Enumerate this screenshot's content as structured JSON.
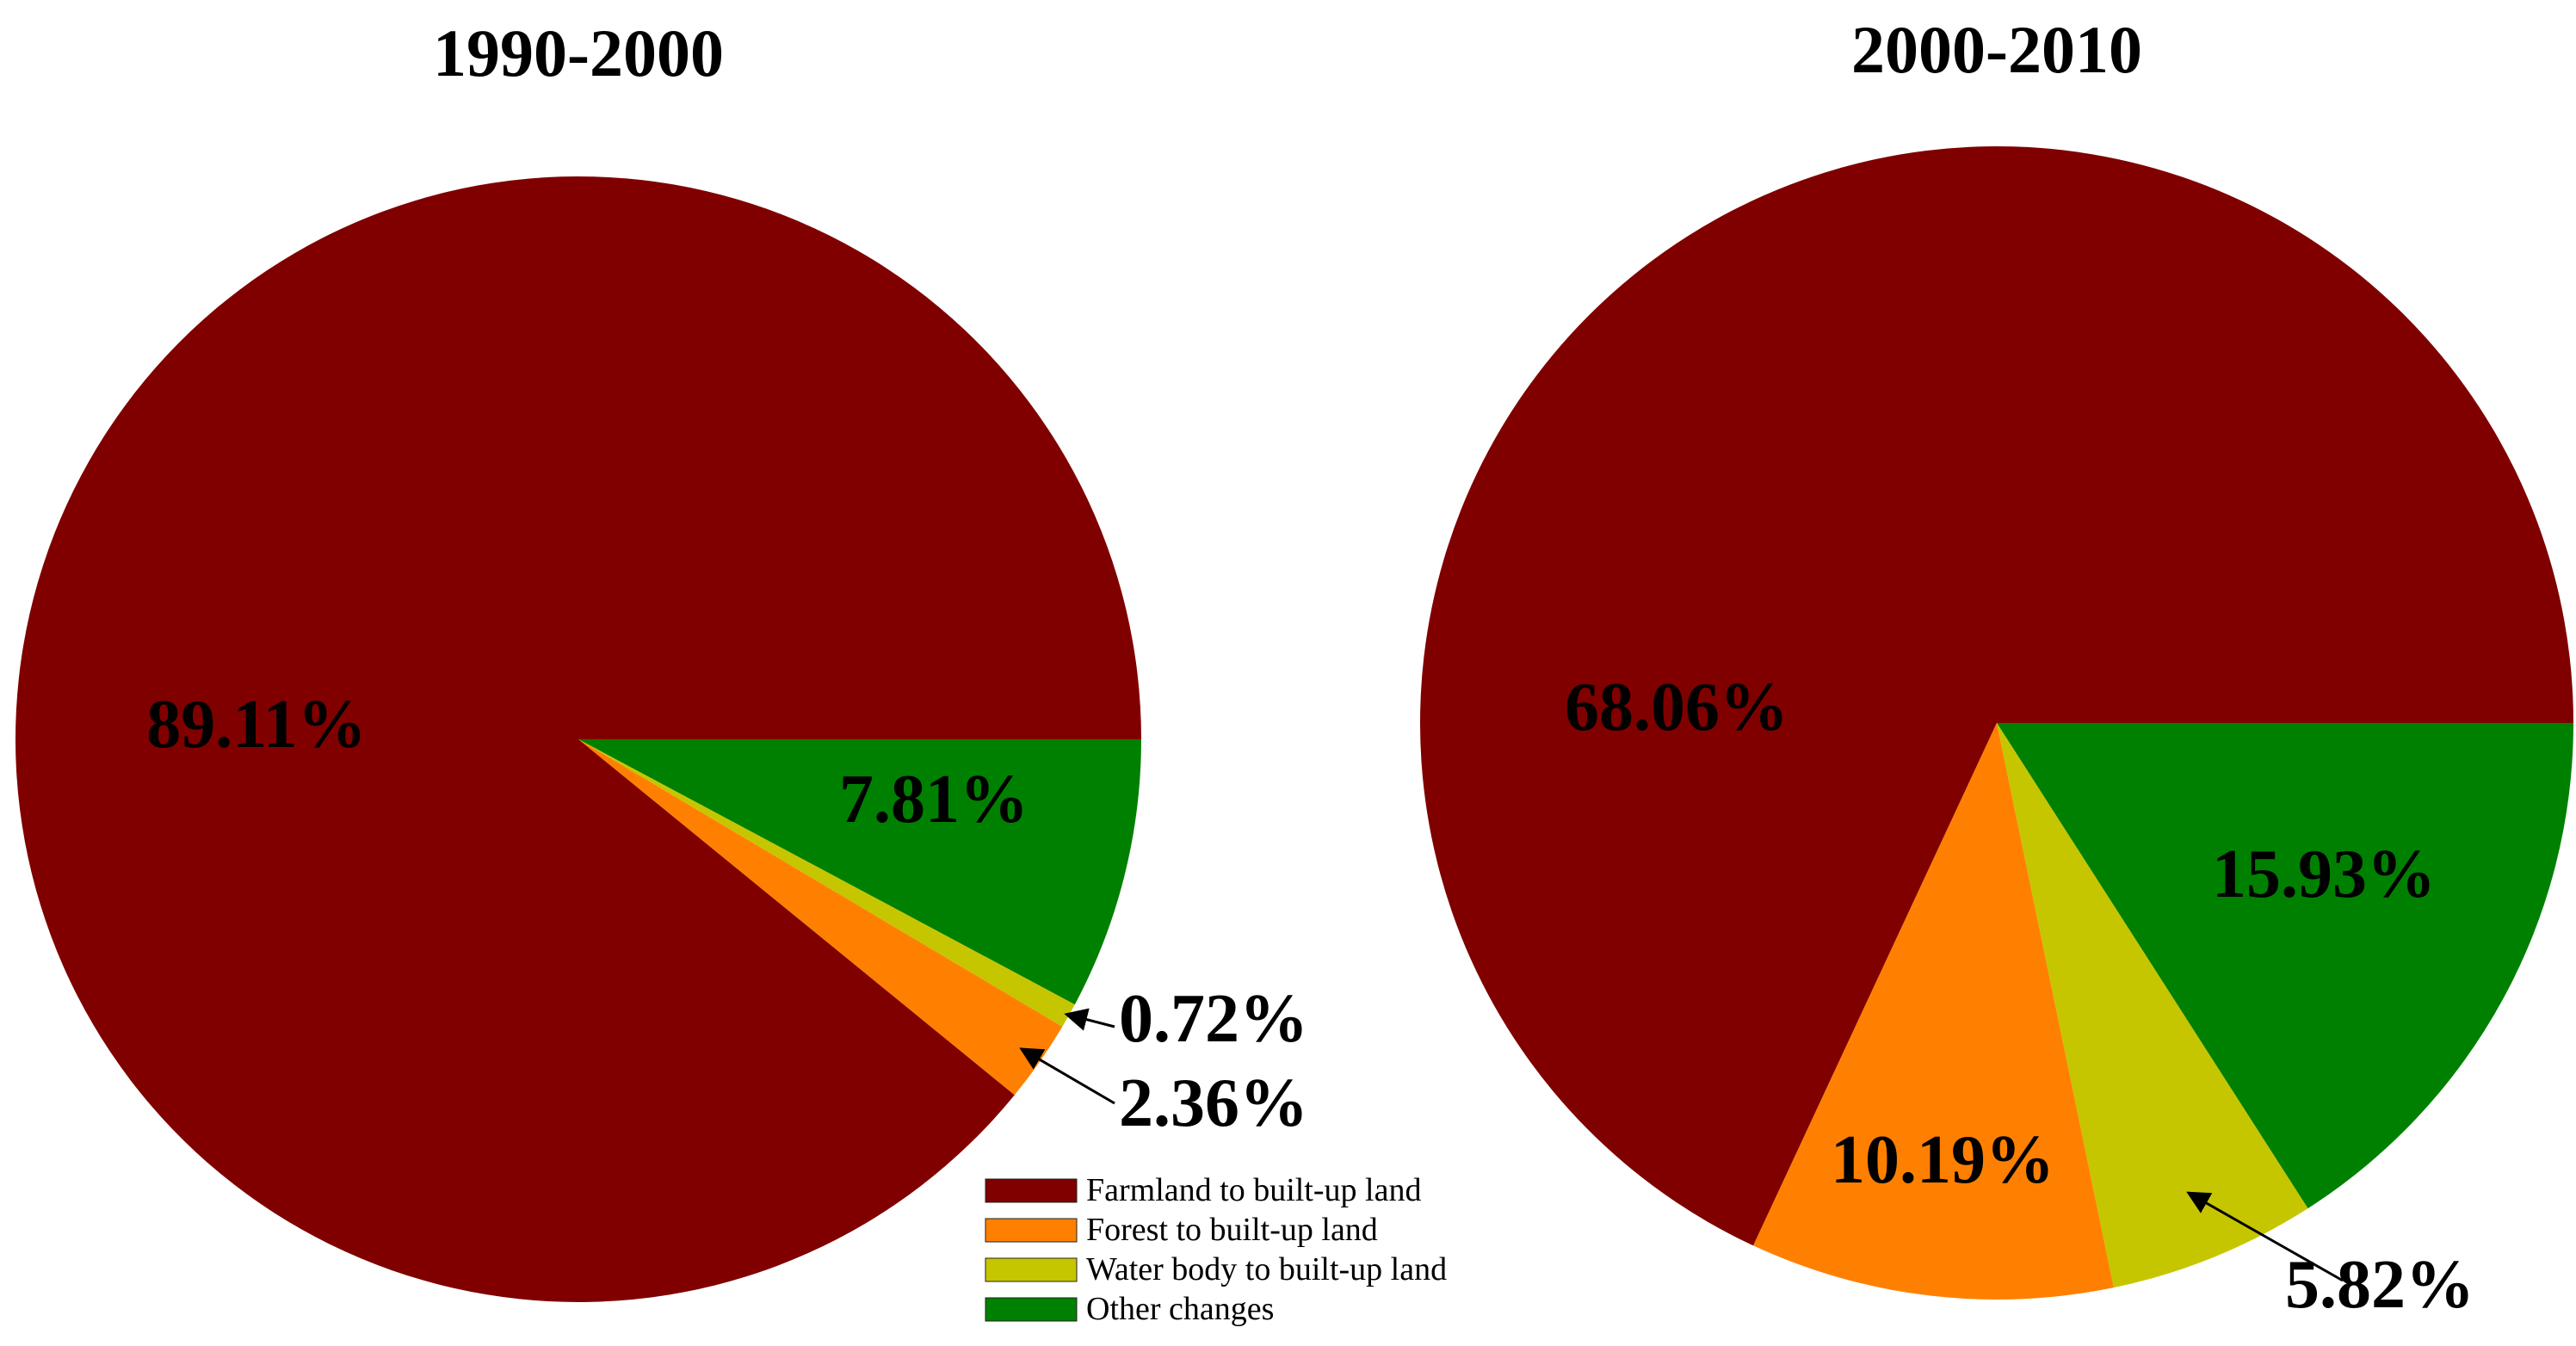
{
  "legend": {
    "items": [
      {
        "label": "Farmland to built-up land",
        "color": "#800000"
      },
      {
        "label": "Forest to built-up land",
        "color": "#FF8000"
      },
      {
        "label": "Water body to built-up land",
        "color": "#C6C600"
      },
      {
        "label": "Other changes",
        "color": "#008000"
      }
    ]
  },
  "chart_data": [
    {
      "type": "pie",
      "title": "1990-2000",
      "unit": "%",
      "categories": [
        "Farmland to built-up land",
        "Forest to built-up land",
        "Water body to built-up land",
        "Other changes"
      ],
      "values": [
        89.11,
        2.36,
        0.72,
        7.81
      ],
      "data_labels": [
        "89.11%",
        "2.36%",
        "0.72%",
        "7.81%"
      ],
      "colors": [
        "#800000",
        "#FF8000",
        "#C6C600",
        "#008000"
      ]
    },
    {
      "type": "pie",
      "title": "2000-2010",
      "unit": "%",
      "categories": [
        "Farmland to built-up land",
        "Forest to built-up land",
        "Water body to built-up land",
        "Other changes"
      ],
      "values": [
        68.06,
        10.19,
        5.82,
        15.93
      ],
      "data_labels": [
        "68.06%",
        "10.19%",
        "5.82%",
        "15.93%"
      ],
      "colors": [
        "#800000",
        "#FF8000",
        "#C6C600",
        "#008000"
      ]
    }
  ]
}
